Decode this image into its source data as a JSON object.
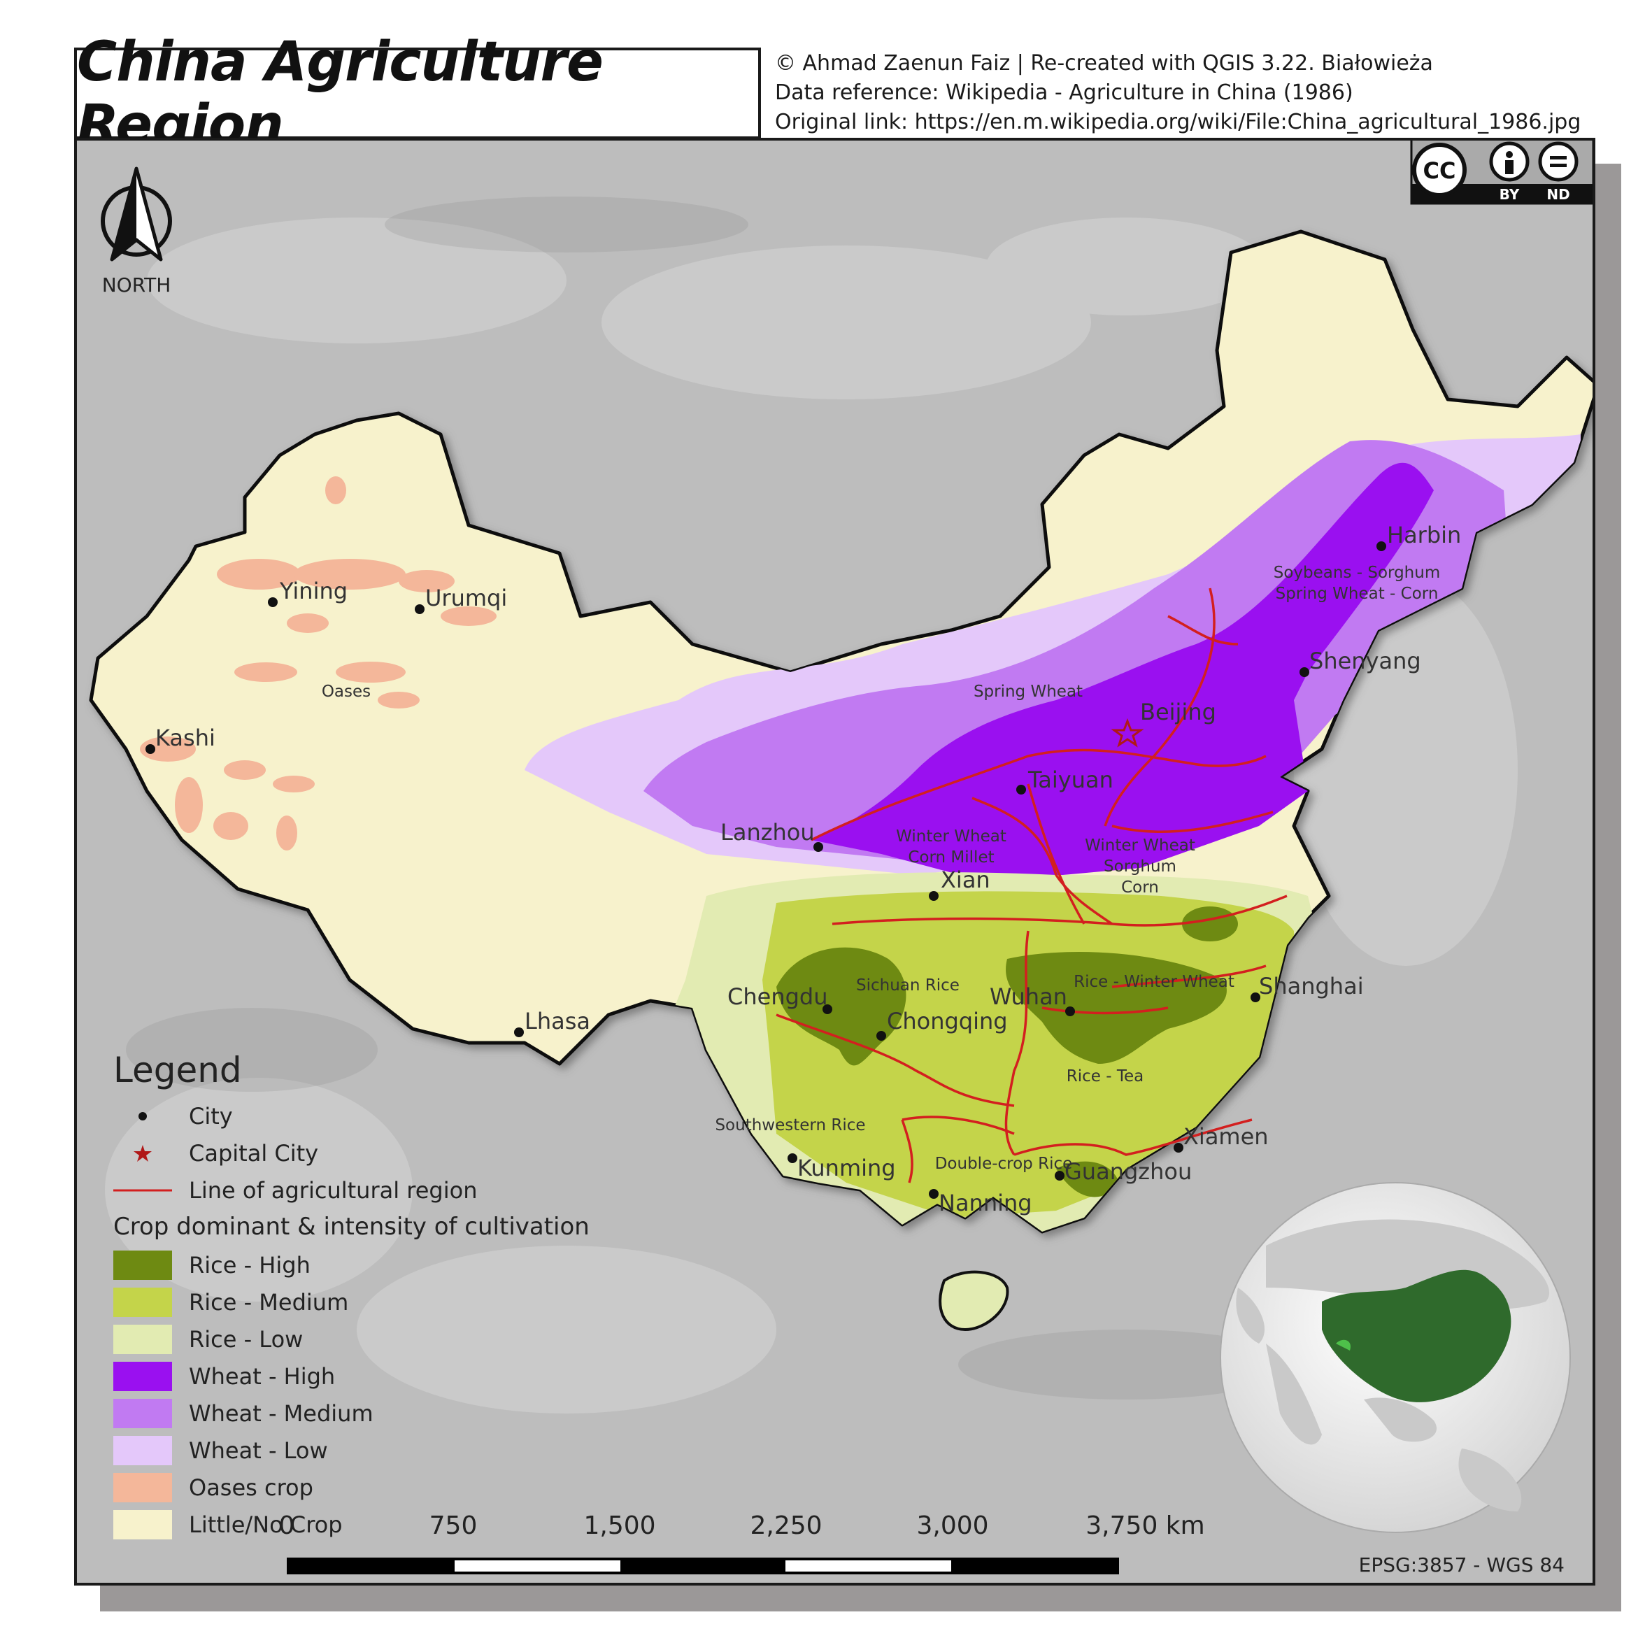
{
  "title": "China Agriculture Region",
  "credits": [
    "© Ahmad Zaenun Faiz | Re-created with QGIS 3.22. Białowieża",
    "Data reference: Wikipedia - Agriculture in China (1986)",
    "Original link: https://en.m.wikipedia.org/wiki/File:China_agricultural_1986.jpg"
  ],
  "license": {
    "badge": "CC",
    "by": "BY",
    "nd": "ND"
  },
  "north_label": "NORTH",
  "cities": [
    {
      "name": "Yining"
    },
    {
      "name": "Urumqi"
    },
    {
      "name": "Kashi"
    },
    {
      "name": "Lhasa"
    },
    {
      "name": "Lanzhou"
    },
    {
      "name": "Xian"
    },
    {
      "name": "Taiyuan"
    },
    {
      "name": "Beijing",
      "capital": true
    },
    {
      "name": "Harbin"
    },
    {
      "name": "Shenyang"
    },
    {
      "name": "Chengdu"
    },
    {
      "name": "Chongqing"
    },
    {
      "name": "Wuhan"
    },
    {
      "name": "Shanghai"
    },
    {
      "name": "Kunming"
    },
    {
      "name": "Nanning"
    },
    {
      "name": "Guangzhou"
    },
    {
      "name": "Xiamen"
    }
  ],
  "region_labels": [
    "Oases",
    "Spring Wheat",
    "Soybeans - Sorghum",
    "Spring Wheat - Corn",
    "Winter Wheat",
    "Corn Millet",
    "Winter Wheat",
    "Sorghum",
    "Corn",
    "Sichuan Rice",
    "Rice - Winter Wheat",
    "Rice - Tea",
    "Southwestern Rice",
    "Double-crop Rice"
  ],
  "legend": {
    "title": "Legend",
    "city": "City",
    "capital": "Capital City",
    "line": "Line of agricultural region",
    "subtitle": "Crop dominant & intensity of cultivation",
    "items": [
      {
        "label": "Rice - High",
        "color": "#6e8a12"
      },
      {
        "label": "Rice - Medium",
        "color": "#c4d44a"
      },
      {
        "label": "Rice - Low",
        "color": "#e2ebb2"
      },
      {
        "label": "Wheat - High",
        "color": "#9a10f0"
      },
      {
        "label": "Wheat - Medium",
        "color": "#c17af2"
      },
      {
        "label": "Wheat - Low",
        "color": "#e4c8fa"
      },
      {
        "label": "Oases crop",
        "color": "#f4b79a"
      },
      {
        "label": "Little/No Crop",
        "color": "#f7f2cc"
      }
    ]
  },
  "scale": {
    "labels": [
      "0",
      "750",
      "1,500",
      "2,250",
      "3,000",
      "3,750 km"
    ]
  },
  "projection": "EPSG:3857 - WGS 84",
  "colors": {
    "region_line": "#d31f1f",
    "border": "#111111",
    "background": "#bdbdbd",
    "capital_star": "#b01818"
  }
}
